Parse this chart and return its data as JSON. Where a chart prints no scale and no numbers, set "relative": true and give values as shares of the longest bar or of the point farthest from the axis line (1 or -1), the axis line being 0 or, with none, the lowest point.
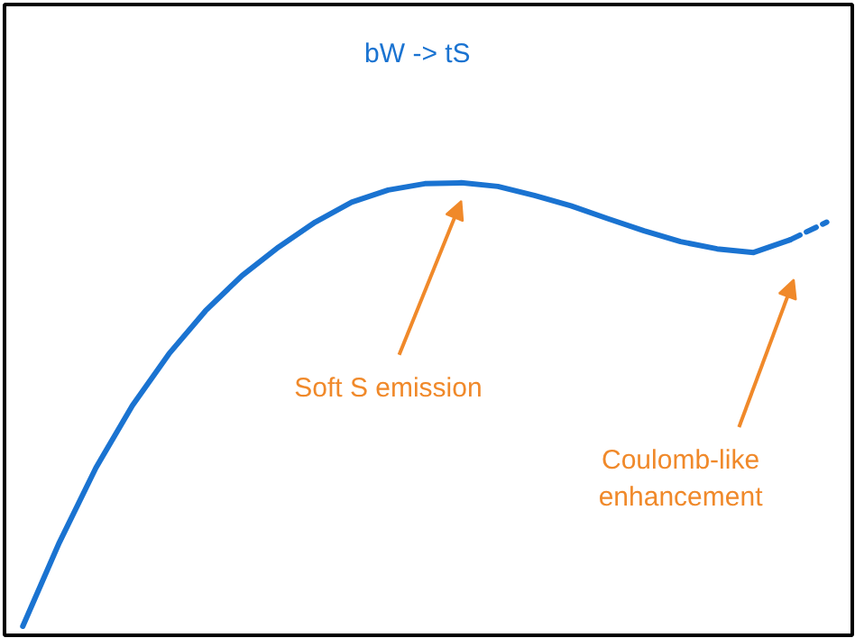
{
  "chart_data": {
    "type": "line",
    "relative": true,
    "title": "bW -> tS",
    "categories": [
      null,
      null,
      null,
      null,
      null,
      null,
      null,
      null,
      null,
      null,
      null,
      null,
      null,
      null,
      null,
      null,
      null,
      null,
      null,
      null,
      null,
      null,
      null
    ],
    "series": [
      {
        "color": "#1a73d1",
        "line_style": "solid",
        "values": [
          0.02,
          0.205,
          0.37,
          0.508,
          0.622,
          0.717,
          0.795,
          0.858,
          0.913,
          0.957,
          0.984,
          0.998,
          1,
          0.992,
          0.972,
          0.949,
          0.921,
          0.894,
          0.87,
          0.854,
          0.846,
          0.874,
          null
        ]
      },
      {
        "color": "#1a73d1",
        "line_style": "dashed",
        "values": [
          null,
          null,
          null,
          null,
          null,
          null,
          null,
          null,
          null,
          null,
          null,
          null,
          null,
          null,
          null,
          null,
          null,
          null,
          null,
          null,
          null,
          0.874,
          0.913
        ]
      }
    ],
    "annotations": [
      "Soft S emission",
      "Coulomb-like\nenhancement"
    ]
  }
}
